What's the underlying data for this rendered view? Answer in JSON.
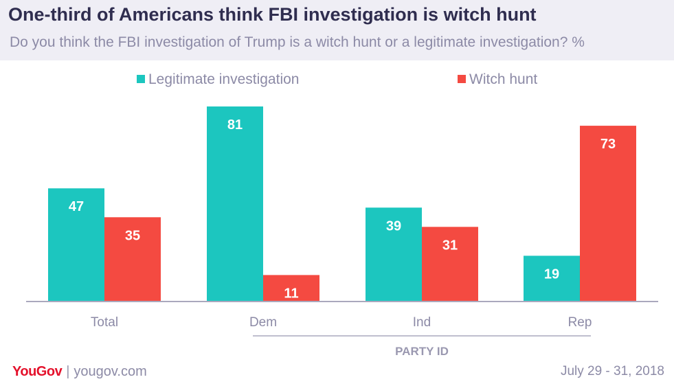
{
  "header": {
    "title": "One-third of Americans think FBI investigation is witch hunt",
    "subtitle": "Do you think the FBI investigation of Trump is a witch hunt or a legitimate investigation? %"
  },
  "chart_data": {
    "type": "bar",
    "categories": [
      "Total",
      "Dem",
      "Ind",
      "Rep"
    ],
    "series": [
      {
        "name": "Legitimate investigation",
        "values": [
          47,
          81,
          39,
          19
        ],
        "color": "#1cc6bf"
      },
      {
        "name": "Witch hunt",
        "values": [
          35,
          11,
          31,
          73
        ],
        "color": "#f44a41"
      }
    ],
    "group_label": "PARTY ID",
    "ylim": [
      0,
      85
    ],
    "grid": false,
    "legend_position": "top"
  },
  "footer": {
    "brand": "YouGov",
    "separator": "|",
    "site": "yougov.com",
    "date": "July 29 - 31, 2018"
  }
}
